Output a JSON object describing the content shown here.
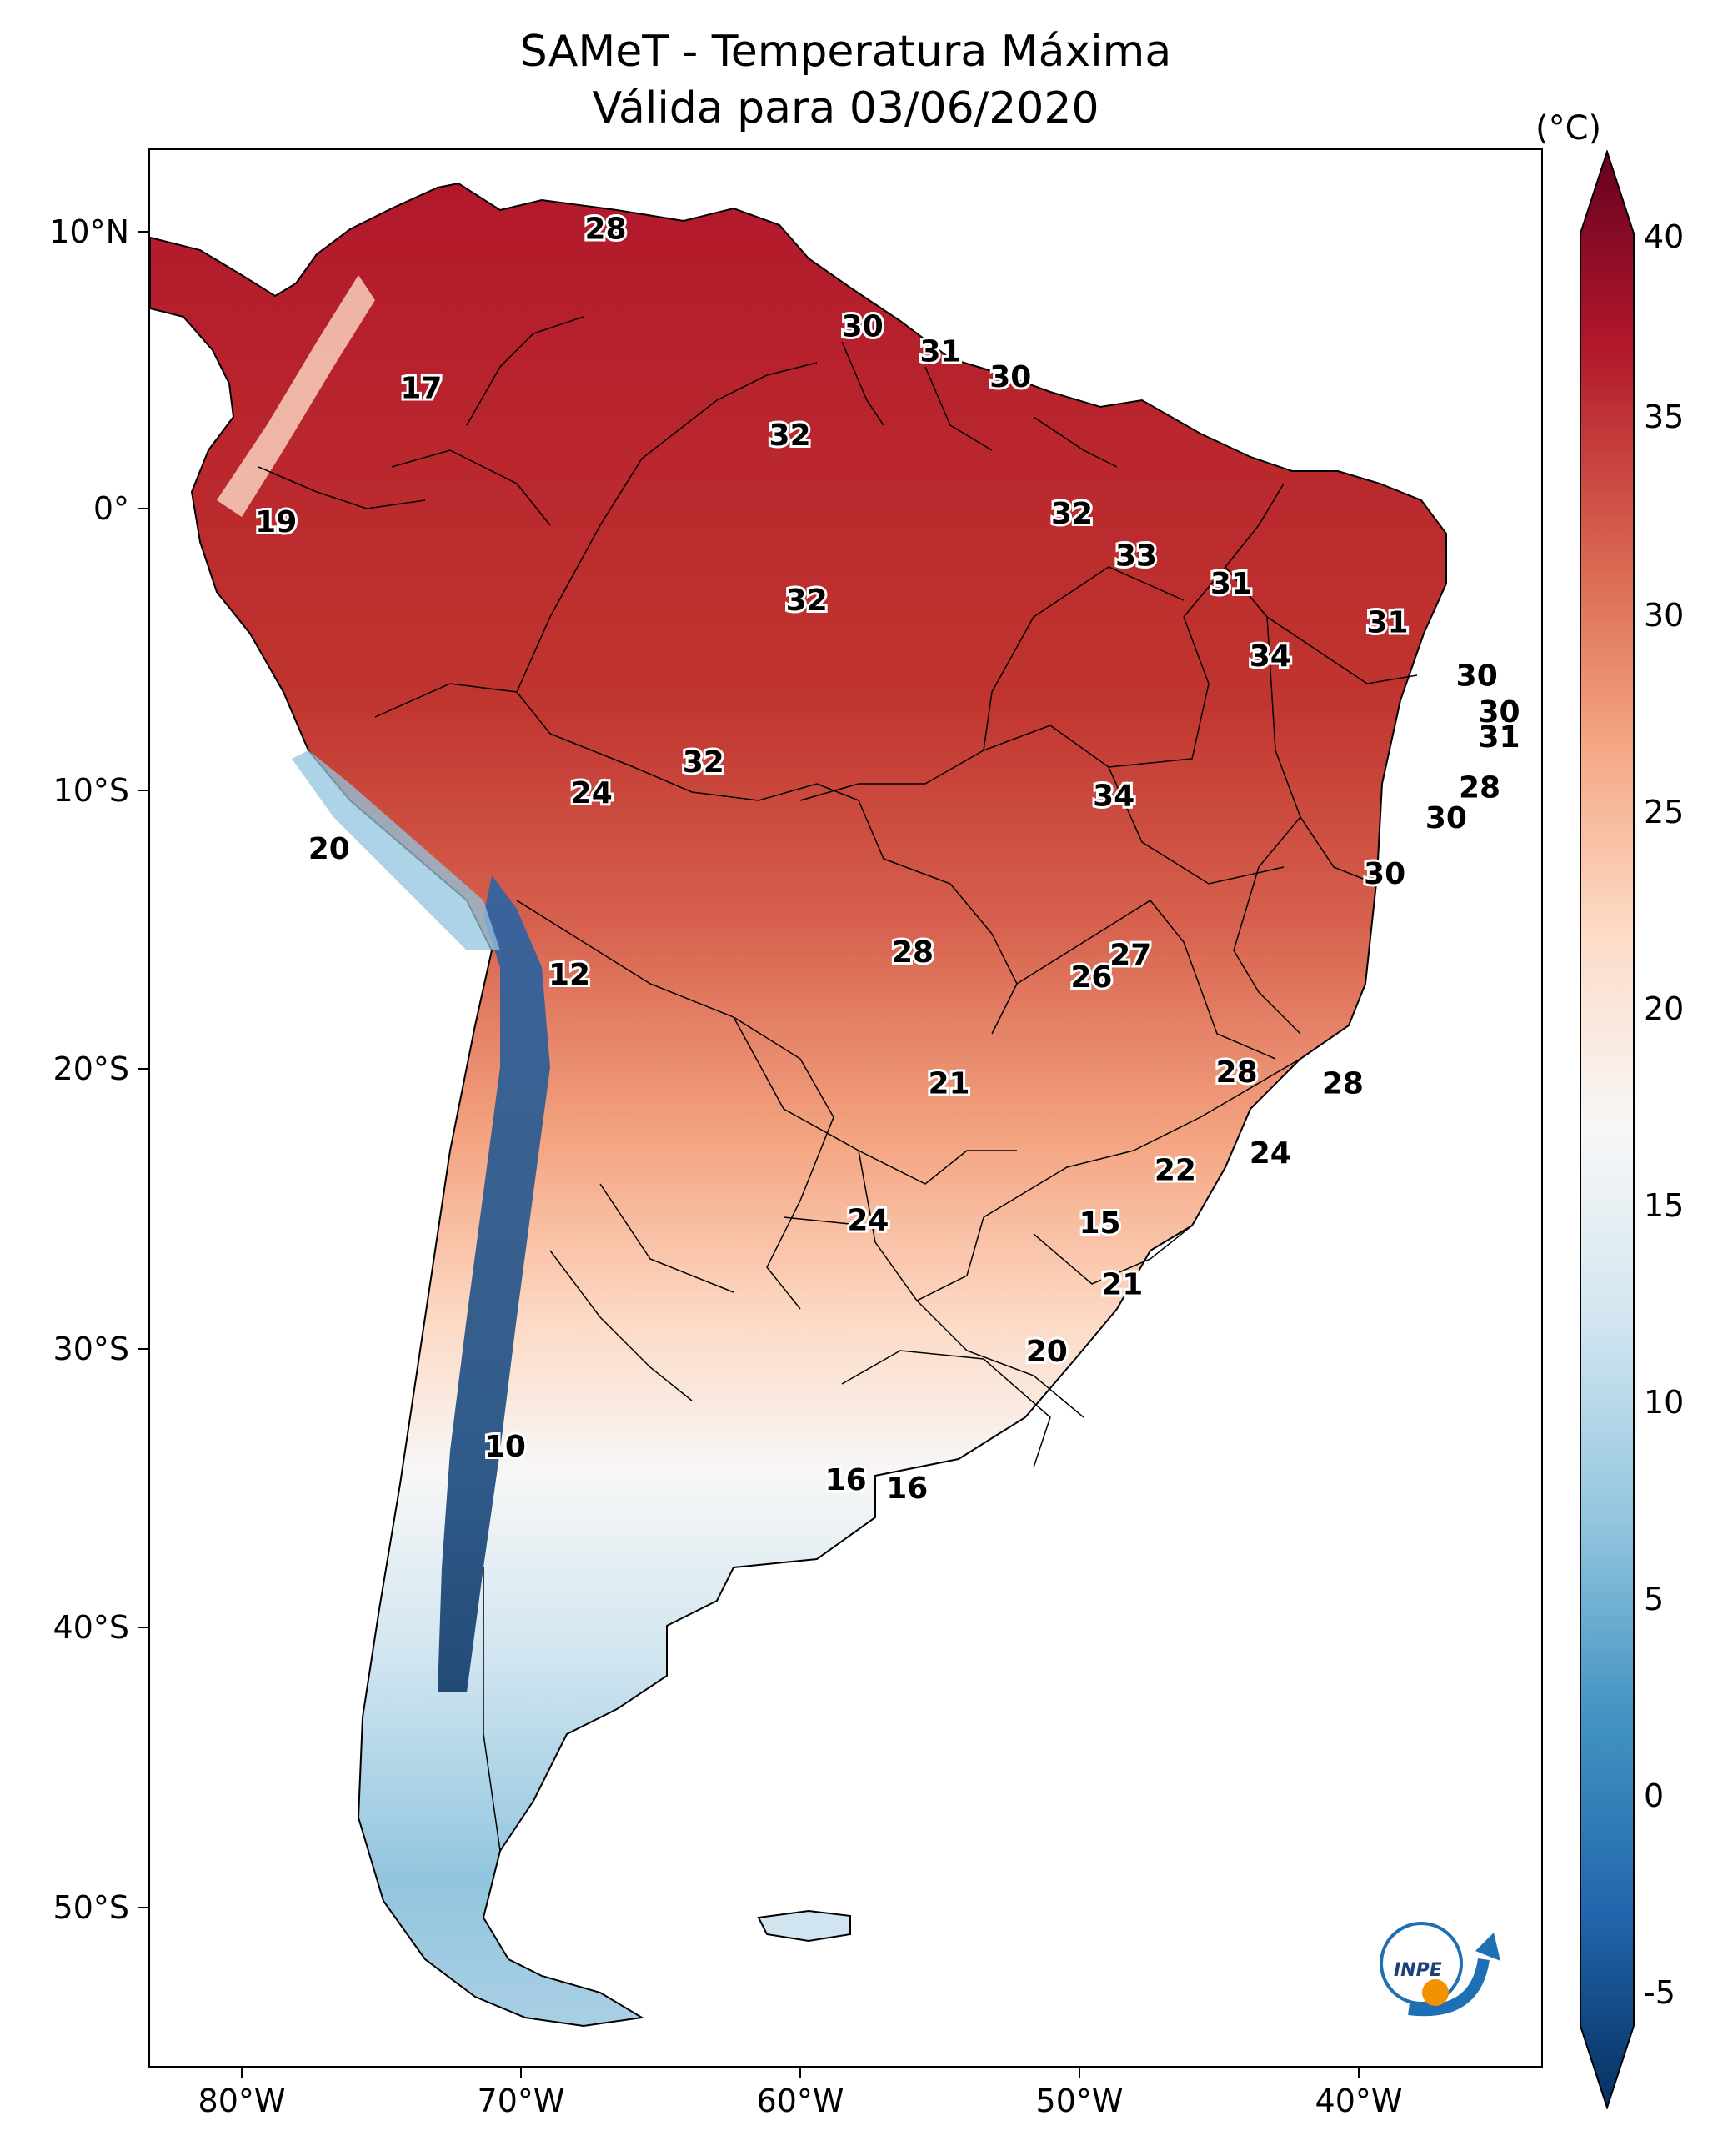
{
  "title": {
    "line1": "SAMeT - Temperatura Máxima",
    "line2": "Válida para 03/06/2020"
  },
  "axes": {
    "lat_labels": [
      "10°N",
      "0°",
      "10°S",
      "20°S",
      "30°S",
      "40°S",
      "50°S"
    ],
    "lon_labels": [
      "80°W",
      "70°W",
      "60°W",
      "50°W",
      "40°W"
    ]
  },
  "colorbar": {
    "unit": "(°C)",
    "tick_labels": [
      "40",
      "35",
      "30",
      "25",
      "20",
      "15",
      "10",
      "5",
      "0",
      "-5"
    ],
    "min": -5,
    "max": 40,
    "colors": [
      "#053061",
      "#2166ac",
      "#4393c3",
      "#92c5de",
      "#d1e5f0",
      "#f7f7f7",
      "#fddbc7",
      "#f4a582",
      "#d6604d",
      "#b2182b",
      "#67001f"
    ]
  },
  "station_values": [
    {
      "label": "28",
      "lon": -67.0,
      "lat": 10.2
    },
    {
      "label": "17",
      "lon": -73.6,
      "lat": 4.5
    },
    {
      "label": "30",
      "lon": -57.8,
      "lat": 6.7
    },
    {
      "label": "31",
      "lon": -55.0,
      "lat": 5.8
    },
    {
      "label": "30",
      "lon": -52.5,
      "lat": 4.9
    },
    {
      "label": "32",
      "lon": -60.4,
      "lat": 2.8
    },
    {
      "label": "19",
      "lon": -78.8,
      "lat": -0.3
    },
    {
      "label": "32",
      "lon": -50.3,
      "lat": 0.0
    },
    {
      "label": "33",
      "lon": -48.0,
      "lat": -1.5
    },
    {
      "label": "31",
      "lon": -44.6,
      "lat": -2.5
    },
    {
      "label": "32",
      "lon": -59.8,
      "lat": -3.1
    },
    {
      "label": "31",
      "lon": -39.0,
      "lat": -3.9
    },
    {
      "label": "34",
      "lon": -43.2,
      "lat": -5.1
    },
    {
      "label": "30",
      "lon": -35.8,
      "lat": -5.8
    },
    {
      "label": "30",
      "lon": -35.0,
      "lat": -7.1
    },
    {
      "label": "31",
      "lon": -35.0,
      "lat": -8.0
    },
    {
      "label": "32",
      "lon": -63.5,
      "lat": -8.9
    },
    {
      "label": "24",
      "lon": -67.5,
      "lat": -10.0
    },
    {
      "label": "34",
      "lon": -48.8,
      "lat": -10.1
    },
    {
      "label": "28",
      "lon": -35.7,
      "lat": -9.8
    },
    {
      "label": "30",
      "lon": -36.9,
      "lat": -10.9
    },
    {
      "label": "20",
      "lon": -76.9,
      "lat": -12.0
    },
    {
      "label": "30",
      "lon": -39.1,
      "lat": -12.9
    },
    {
      "label": "27",
      "lon": -48.2,
      "lat": -15.8
    },
    {
      "label": "28",
      "lon": -56.0,
      "lat": -15.7
    },
    {
      "label": "26",
      "lon": -49.6,
      "lat": -16.6
    },
    {
      "label": "12",
      "lon": -68.3,
      "lat": -16.5
    },
    {
      "label": "28",
      "lon": -44.4,
      "lat": -20.0
    },
    {
      "label": "21",
      "lon": -54.7,
      "lat": -20.4
    },
    {
      "label": "28",
      "lon": -40.6,
      "lat": -20.4
    },
    {
      "label": "24",
      "lon": -43.2,
      "lat": -22.9
    },
    {
      "label": "22",
      "lon": -46.6,
      "lat": -23.5
    },
    {
      "label": "24",
      "lon": -57.6,
      "lat": -25.3
    },
    {
      "label": "15",
      "lon": -49.3,
      "lat": -25.4
    },
    {
      "label": "21",
      "lon": -48.5,
      "lat": -27.6
    },
    {
      "label": "20",
      "lon": -51.2,
      "lat": -30.0
    },
    {
      "label": "10",
      "lon": -70.6,
      "lat": -33.4
    },
    {
      "label": "16",
      "lon": -58.4,
      "lat": -34.6
    },
    {
      "label": "16",
      "lon": -56.2,
      "lat": -34.9
    }
  ]
}
